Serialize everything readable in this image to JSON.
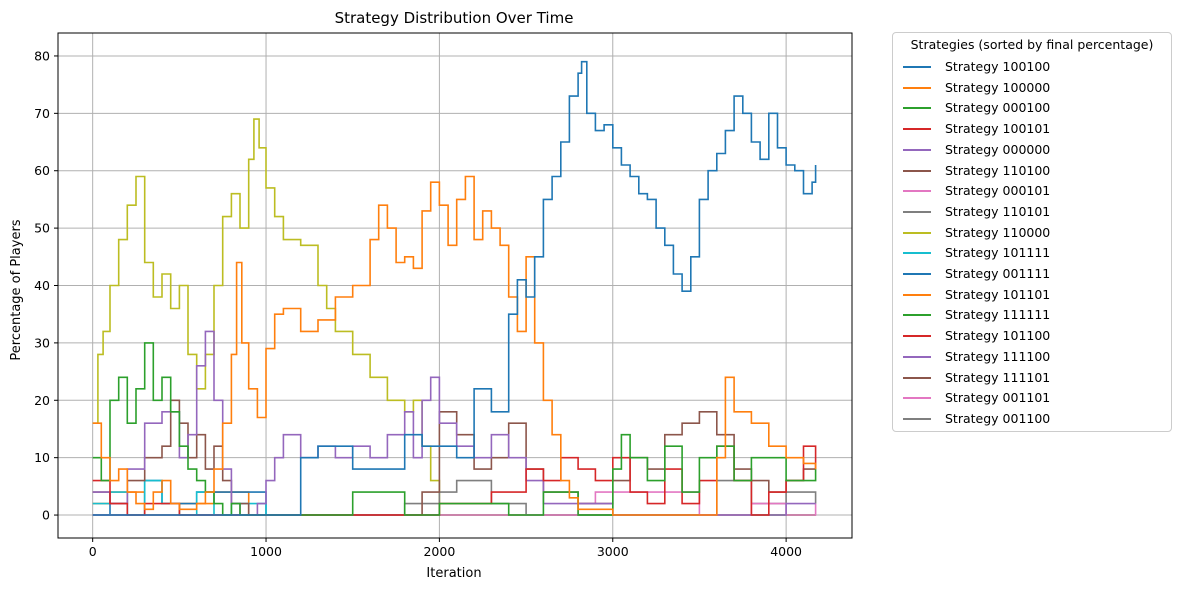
{
  "chart_data": {
    "type": "line",
    "title": "Strategy Distribution Over Time",
    "xlabel": "Iteration",
    "ylabel": "Percentage of Players",
    "xlim": [
      -200,
      4380
    ],
    "ylim": [
      -4,
      84
    ],
    "xticks": [
      0,
      1000,
      2000,
      3000,
      4000
    ],
    "yticks": [
      0,
      10,
      20,
      30,
      40,
      50,
      60,
      70,
      80
    ],
    "grid": true,
    "legend_title": "Strategies (sorted by final percentage)",
    "legend_position": "outside-right",
    "series": [
      {
        "name": "Strategy 100100",
        "color": "#1f77b4",
        "step": true,
        "x": [
          0,
          1200,
          1300,
          1500,
          1800,
          1900,
          2100,
          2200,
          2300,
          2400,
          2450,
          2500,
          2550,
          2600,
          2650,
          2700,
          2750,
          2800,
          2820,
          2850,
          2900,
          2950,
          3000,
          3050,
          3100,
          3150,
          3200,
          3250,
          3300,
          3350,
          3400,
          3450,
          3500,
          3550,
          3600,
          3650,
          3700,
          3750,
          3800,
          3850,
          3900,
          3950,
          4000,
          4050,
          4100,
          4150,
          4170
        ],
        "y": [
          0,
          10,
          12,
          8,
          14,
          12,
          10,
          22,
          18,
          35,
          41,
          38,
          45,
          55,
          59,
          65,
          73,
          77,
          79,
          70,
          67,
          68,
          64,
          61,
          59,
          56,
          55,
          50,
          47,
          42,
          39,
          45,
          55,
          60,
          63,
          67,
          73,
          70,
          65,
          62,
          70,
          64,
          61,
          60,
          56,
          58,
          61
        ]
      },
      {
        "name": "Strategy 100000",
        "color": "#ff7f0e",
        "step": true,
        "x": [
          0,
          50,
          100,
          150,
          200,
          250,
          300,
          350,
          400,
          450,
          500,
          550,
          600,
          650,
          700,
          750,
          800,
          830,
          860,
          900,
          950,
          1000,
          1050,
          1100,
          1200,
          1300,
          1400,
          1500,
          1600,
          1650,
          1700,
          1750,
          1800,
          1850,
          1900,
          1950,
          2000,
          2050,
          2100,
          2150,
          2200,
          2250,
          2300,
          2350,
          2400,
          2450,
          2500,
          2550,
          2600,
          2650,
          2700,
          2750,
          2800,
          3000,
          3200,
          3400,
          3600,
          3650,
          3700,
          3800,
          3900,
          4000,
          4100,
          4170
        ],
        "y": [
          16,
          10,
          6,
          8,
          4,
          2,
          1,
          4,
          6,
          2,
          1,
          1,
          2,
          4,
          8,
          16,
          28,
          44,
          30,
          22,
          17,
          29,
          35,
          36,
          32,
          34,
          38,
          40,
          48,
          54,
          50,
          44,
          45,
          43,
          53,
          58,
          54,
          47,
          55,
          59,
          48,
          53,
          50,
          47,
          38,
          32,
          45,
          30,
          20,
          14,
          6,
          3,
          1,
          0,
          0,
          0,
          10,
          24,
          18,
          16,
          12,
          10,
          9,
          8
        ]
      },
      {
        "name": "Strategy 000100",
        "color": "#2ca02c",
        "step": true,
        "x": [
          0,
          50,
          100,
          150,
          200,
          250,
          300,
          350,
          400,
          450,
          500,
          550,
          600,
          650,
          700,
          750,
          800,
          850,
          900,
          1000,
          1400,
          1500,
          1800,
          2000,
          2400,
          2600,
          2800,
          3000,
          3050,
          3100,
          3200,
          3300,
          3400,
          3500,
          3600,
          3700,
          3800,
          4000,
          4170
        ],
        "y": [
          10,
          6,
          20,
          24,
          16,
          22,
          30,
          20,
          24,
          18,
          12,
          8,
          6,
          4,
          2,
          0,
          2,
          0,
          0,
          0,
          0,
          4,
          0,
          2,
          0,
          4,
          0,
          8,
          14,
          10,
          6,
          12,
          4,
          10,
          12,
          6,
          10,
          6,
          8
        ]
      },
      {
        "name": "Strategy 100101",
        "color": "#d62728",
        "step": true,
        "x": [
          0,
          100,
          200,
          300,
          500,
          1000,
          1500,
          2000,
          2300,
          2500,
          2600,
          2700,
          2800,
          2900,
          3000,
          3100,
          3200,
          3300,
          3400,
          3500,
          3600,
          3700,
          3800,
          3900,
          4000,
          4100,
          4170
        ],
        "y": [
          6,
          2,
          0,
          2,
          0,
          0,
          0,
          2,
          4,
          8,
          6,
          10,
          8,
          6,
          10,
          4,
          2,
          8,
          2,
          6,
          12,
          6,
          0,
          4,
          6,
          12,
          8
        ]
      },
      {
        "name": "Strategy 000000",
        "color": "#9467bd",
        "step": true,
        "x": [
          0,
          100,
          200,
          300,
          400,
          500,
          550,
          600,
          650,
          700,
          750,
          800,
          850,
          900,
          950,
          1000,
          1050,
          1100,
          1200,
          1300,
          1400,
          1500,
          1600,
          1700,
          1800,
          1850,
          1900,
          1950,
          2000,
          2100,
          2200,
          2300,
          2400,
          2500,
          2600,
          3000,
          3500,
          4000,
          4170
        ],
        "y": [
          4,
          2,
          8,
          16,
          18,
          10,
          14,
          26,
          32,
          20,
          8,
          2,
          0,
          0,
          2,
          6,
          10,
          14,
          10,
          12,
          10,
          12,
          10,
          14,
          18,
          10,
          20,
          24,
          16,
          12,
          10,
          14,
          10,
          6,
          2,
          0,
          0,
          2,
          2
        ]
      },
      {
        "name": "Strategy 110100",
        "color": "#8c564b",
        "step": true,
        "x": [
          0,
          100,
          200,
          300,
          400,
          450,
          500,
          550,
          600,
          650,
          700,
          750,
          800,
          900,
          1000,
          1500,
          1700,
          1900,
          2000,
          2100,
          2200,
          2300,
          2400,
          2500,
          2600,
          2800,
          3000,
          3100,
          3200,
          3300,
          3400,
          3500,
          3600,
          3700,
          3800,
          3900,
          4000,
          4100,
          4170
        ],
        "y": [
          4,
          2,
          6,
          10,
          12,
          20,
          16,
          10,
          14,
          8,
          12,
          6,
          2,
          0,
          0,
          0,
          0,
          4,
          18,
          14,
          8,
          10,
          16,
          8,
          4,
          2,
          6,
          10,
          8,
          14,
          16,
          18,
          14,
          8,
          6,
          4,
          6,
          8,
          8
        ]
      },
      {
        "name": "Strategy 000101",
        "color": "#e377c2",
        "step": true,
        "x": [
          0,
          500,
          1000,
          2000,
          2500,
          2800,
          2900,
          3500,
          3800,
          4000,
          4170
        ],
        "y": [
          0,
          0,
          0,
          0,
          0,
          2,
          4,
          0,
          2,
          0,
          2
        ]
      },
      {
        "name": "Strategy 110101",
        "color": "#7f7f7f",
        "step": true,
        "x": [
          0,
          1000,
          1800,
          2000,
          2100,
          2300,
          2500,
          3500,
          3600,
          3800,
          4000,
          4170
        ],
        "y": [
          0,
          0,
          2,
          4,
          6,
          2,
          0,
          0,
          6,
          2,
          4,
          2
        ]
      },
      {
        "name": "Strategy 110000",
        "color": "#bcbd22",
        "step": true,
        "x": [
          0,
          30,
          60,
          100,
          150,
          200,
          250,
          300,
          350,
          400,
          450,
          500,
          550,
          600,
          650,
          700,
          750,
          800,
          850,
          900,
          930,
          960,
          1000,
          1050,
          1100,
          1200,
          1300,
          1350,
          1400,
          1500,
          1600,
          1700,
          1800,
          1850,
          1900,
          1950,
          2000,
          2500,
          4170
        ],
        "y": [
          16,
          28,
          32,
          40,
          48,
          54,
          59,
          44,
          38,
          42,
          36,
          40,
          28,
          22,
          28,
          40,
          52,
          56,
          50,
          62,
          69,
          64,
          57,
          52,
          48,
          47,
          40,
          36,
          32,
          28,
          24,
          20,
          18,
          20,
          12,
          6,
          0,
          0,
          0
        ]
      },
      {
        "name": "Strategy 101111",
        "color": "#17becf",
        "step": true,
        "x": [
          0,
          100,
          200,
          300,
          400,
          500,
          600,
          700,
          800,
          1000,
          2000,
          3000,
          4170
        ],
        "y": [
          2,
          4,
          0,
          6,
          2,
          0,
          4,
          0,
          2,
          0,
          0,
          0,
          0
        ]
      },
      {
        "name": "Strategy 001111",
        "color": "#1f77b4",
        "step": true,
        "x": [
          0,
          100,
          200,
          300,
          400,
          600,
          1000,
          2000,
          3000,
          4170
        ],
        "y": [
          0,
          2,
          0,
          6,
          2,
          4,
          0,
          0,
          0,
          0
        ]
      },
      {
        "name": "Strategy 101101",
        "color": "#ff7f0e",
        "step": true,
        "x": [
          0,
          100,
          300,
          500,
          700,
          900,
          1000,
          2000,
          3000,
          4170
        ],
        "y": [
          2,
          4,
          0,
          2,
          4,
          0,
          0,
          0,
          0,
          0
        ]
      },
      {
        "name": "Strategy 111111",
        "color": "#2ca02c",
        "step": true,
        "x": [
          0,
          1000,
          2000,
          3000,
          4170
        ],
        "y": [
          0,
          0,
          0,
          0,
          0
        ]
      },
      {
        "name": "Strategy 101100",
        "color": "#d62728",
        "step": true,
        "x": [
          0,
          1000,
          2000,
          3000,
          4170
        ],
        "y": [
          0,
          0,
          0,
          0,
          0
        ]
      },
      {
        "name": "Strategy 111100",
        "color": "#9467bd",
        "step": true,
        "x": [
          0,
          1000,
          2000,
          3000,
          4170
        ],
        "y": [
          0,
          0,
          0,
          0,
          0
        ]
      },
      {
        "name": "Strategy 111101",
        "color": "#8c564b",
        "step": true,
        "x": [
          0,
          1000,
          2000,
          3000,
          4170
        ],
        "y": [
          0,
          0,
          0,
          0,
          0
        ]
      },
      {
        "name": "Strategy 001101",
        "color": "#e377c2",
        "step": true,
        "x": [
          0,
          1000,
          2000,
          3000,
          4170
        ],
        "y": [
          0,
          0,
          0,
          0,
          0
        ]
      },
      {
        "name": "Strategy 001100",
        "color": "#7f7f7f",
        "step": true,
        "x": [
          0,
          1000,
          2000,
          3000,
          4170
        ],
        "y": [
          0,
          0,
          0,
          0,
          0
        ]
      }
    ]
  }
}
